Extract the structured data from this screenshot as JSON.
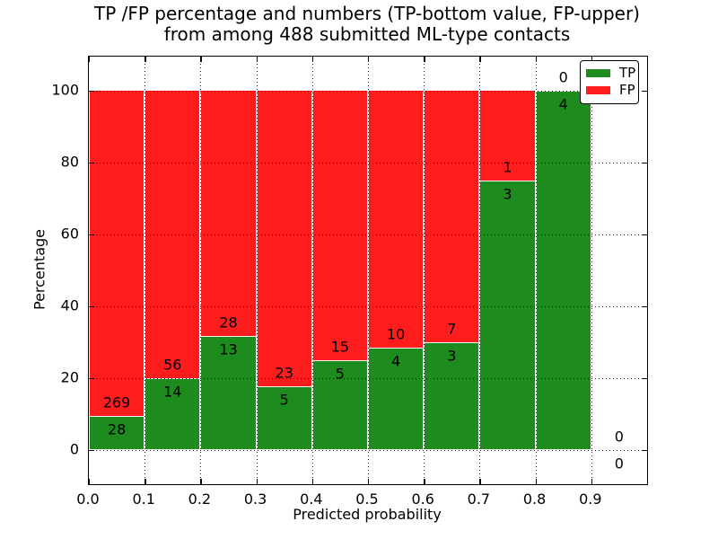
{
  "title": {
    "line1": "TP /FP percentage and numbers (TP-bottom value, FP-upper)",
    "line2": "from among 488 submitted ML-type contacts"
  },
  "chart_data": {
    "type": "bar",
    "stacked": true,
    "normalized_to_percent": true,
    "title": "TP /FP percentage and numbers (TP-bottom value, FP-upper)\nfrom among 488 submitted ML-type contacts",
    "xlabel": "Predicted probability",
    "ylabel": "Percentage",
    "total_contacts": 488,
    "bin_width": 0.1,
    "bin_starts": [
      0.0,
      0.1,
      0.2,
      0.3,
      0.4,
      0.5,
      0.6,
      0.7,
      0.8,
      0.9
    ],
    "series": [
      {
        "name": "TP",
        "color": "#1e8b1e",
        "values": [
          28,
          14,
          13,
          5,
          5,
          4,
          3,
          3,
          4,
          0
        ]
      },
      {
        "name": "FP",
        "color": "#ff1c1c",
        "values": [
          269,
          56,
          28,
          23,
          15,
          10,
          7,
          1,
          0,
          0
        ]
      }
    ],
    "tp_percent_of_bin": [
      9.4,
      20.0,
      31.7,
      17.9,
      25.0,
      28.6,
      30.0,
      75.0,
      100.0,
      0.0
    ],
    "annotation_note": "FP count printed above TP/FP boundary, TP count below",
    "xticks": [
      "0.0",
      "0.1",
      "0.2",
      "0.3",
      "0.4",
      "0.5",
      "0.6",
      "0.7",
      "0.8",
      "0.9"
    ],
    "yticks": [
      "0",
      "20",
      "40",
      "60",
      "80",
      "100"
    ],
    "xlim": [
      0.0,
      1.0
    ],
    "ylim": [
      -9.5,
      109.5
    ],
    "grid": "dotted black, drawn above bars",
    "bar_edge_color": "#ffffff",
    "legend": {
      "position": "upper right",
      "entries": [
        {
          "label": "TP",
          "color": "#1e8b1e"
        },
        {
          "label": "FP",
          "color": "#ff1c1c"
        }
      ]
    }
  }
}
